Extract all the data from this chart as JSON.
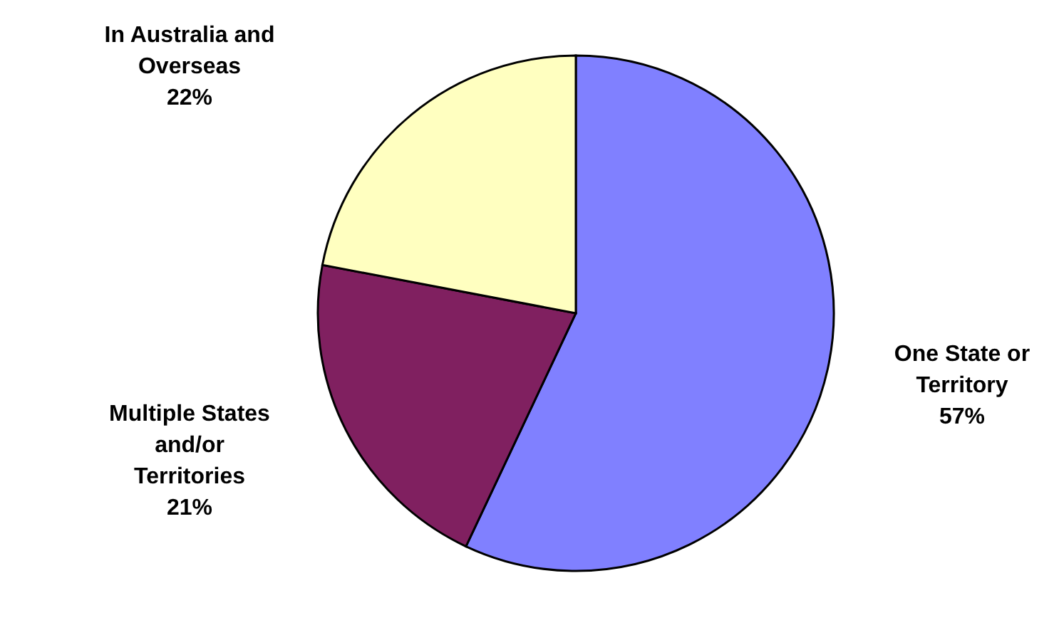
{
  "chart_data": {
    "type": "pie",
    "categories": [
      "One State or Territory",
      "Multiple States and/or Territories",
      "In Australia and Overseas"
    ],
    "values": [
      57,
      21,
      22
    ],
    "value_labels": [
      "57%",
      "21%",
      "22%"
    ],
    "colors": [
      "#8080ff",
      "#802060",
      "#ffffc0"
    ]
  }
}
